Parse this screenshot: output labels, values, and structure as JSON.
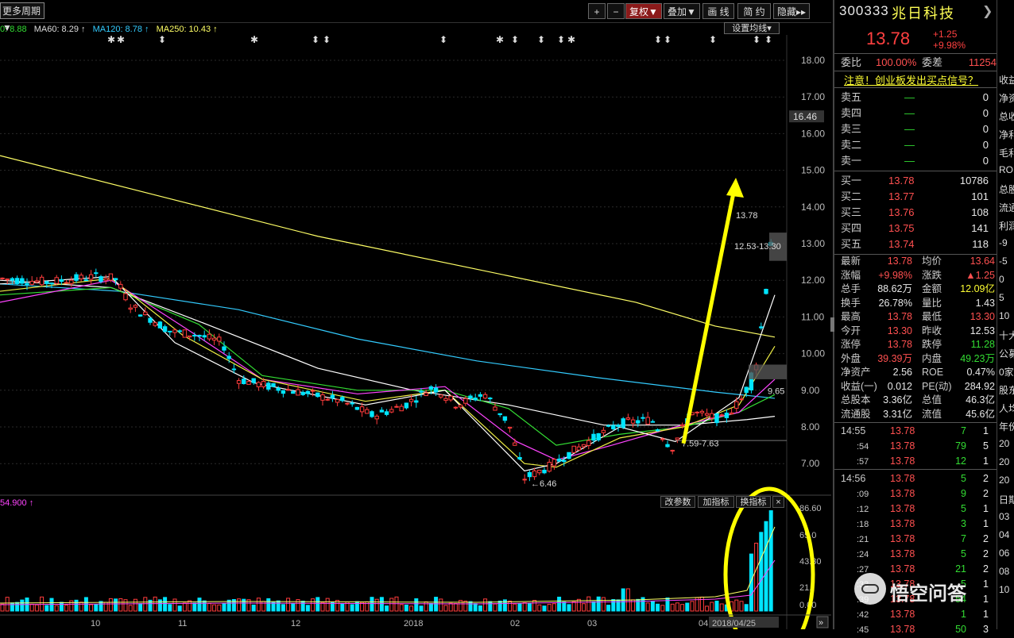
{
  "toolbar": {
    "period": "更多周期▼",
    "plus": "+",
    "minus": "−",
    "fuquan": "复权▼",
    "overlay": "叠加▼",
    "draw": "画 线",
    "simple": "简 约",
    "hide": "隐藏▸▸"
  },
  "ma_legend": {
    "ma_a": "0: 8.88",
    "ma60": "MA60: 8.29 ↑",
    "ma120": "MA120: 8.78 ↑",
    "ma250": "MA250: 10.43 ↑",
    "set_ma": "设置均线▾"
  },
  "price_axis": [
    "18.00",
    "17.00",
    "16.00",
    "15.00",
    "14.00",
    "13.00",
    "12.00",
    "11.00",
    "10.00",
    "9.00",
    "8.00",
    "7.00"
  ],
  "current_price_tag": "16.46",
  "annotations": {
    "high_label": "13.78",
    "gap_label_upper": "12.53-13.30",
    "gap_label_lower": "9.65",
    "gap_label_mid": "7.59-7.63",
    "low_label": "6.46"
  },
  "volume": {
    "legend": "54.900 ↑",
    "axis": [
      "86.60",
      "65.0",
      "43.30",
      "21.",
      "0.00"
    ],
    "buttons": {
      "params": "改参数",
      "add": "加指标",
      "switch": "换指标",
      "close": "×"
    }
  },
  "time_axis": [
    "10",
    "11",
    "12",
    "2018",
    "02",
    "03",
    "04",
    "2018/04/25"
  ],
  "chart_data": {
    "type": "candlestick",
    "title": "",
    "ylim": [
      6.2,
      18.3
    ],
    "moving_averages": {
      "MA60": 8.29,
      "MA120": 8.78,
      "MA250": 10.43
    },
    "annotated_points": {
      "high": 13.78,
      "low": 6.46
    }
  },
  "panel": {
    "code": "300333",
    "name": "兆日科技",
    "price": "13.78",
    "change": "+1.25",
    "change_pct": "+9.98%",
    "weibi_label": "委比",
    "weibi": "100.00%",
    "weicha_label": "委差",
    "weicha": "11254",
    "notice": "注意！创业板发出买点信号？",
    "asks": [
      {
        "label": "卖五",
        "price": "—",
        "vol": "0"
      },
      {
        "label": "卖四",
        "price": "—",
        "vol": "0"
      },
      {
        "label": "卖三",
        "price": "—",
        "vol": "0"
      },
      {
        "label": "卖二",
        "price": "—",
        "vol": "0"
      },
      {
        "label": "卖一",
        "price": "—",
        "vol": "0"
      }
    ],
    "bids": [
      {
        "label": "买一",
        "price": "13.78",
        "vol": "10786"
      },
      {
        "label": "买二",
        "price": "13.77",
        "vol": "101"
      },
      {
        "label": "买三",
        "price": "13.76",
        "vol": "108"
      },
      {
        "label": "买四",
        "price": "13.75",
        "vol": "141"
      },
      {
        "label": "买五",
        "price": "13.74",
        "vol": "118"
      }
    ],
    "stats": [
      {
        "l1": "最新",
        "v1": "13.78",
        "c1": "red",
        "l2": "均价",
        "v2": "13.64",
        "c2": "red"
      },
      {
        "l1": "涨幅",
        "v1": "+9.98%",
        "c1": "red",
        "l2": "涨跌",
        "v2": "▲1.25",
        "c2": "red"
      },
      {
        "l1": "总手",
        "v1": "88.62万",
        "c1": "white",
        "l2": "金额",
        "v2": "12.09亿",
        "c2": "yellow"
      },
      {
        "l1": "换手",
        "v1": "26.78%",
        "c1": "white",
        "l2": "量比",
        "v2": "1.43",
        "c2": "white"
      },
      {
        "l1": "最高",
        "v1": "13.78",
        "c1": "red",
        "l2": "最低",
        "v2": "13.30",
        "c2": "red"
      },
      {
        "l1": "今开",
        "v1": "13.30",
        "c1": "red",
        "l2": "昨收",
        "v2": "12.53",
        "c2": "white"
      },
      {
        "l1": "涨停",
        "v1": "13.78",
        "c1": "red",
        "l2": "跌停",
        "v2": "11.28",
        "c2": "green"
      },
      {
        "l1": "外盘",
        "v1": "39.39万",
        "c1": "red",
        "l2": "内盘",
        "v2": "49.23万",
        "c2": "green"
      },
      {
        "l1": "净资产",
        "v1": "2.56",
        "c1": "white",
        "l2": "ROE",
        "v2": "0.47%",
        "c2": "white"
      },
      {
        "l1": "收益(一)",
        "v1": "0.012",
        "c1": "white",
        "l2": "PE(动)",
        "v2": "284.92",
        "c2": "white"
      },
      {
        "l1": "总股本",
        "v1": "3.36亿",
        "c1": "white",
        "l2": "总值",
        "v2": "46.3亿",
        "c2": "white"
      },
      {
        "l1": "流通股",
        "v1": "3.31亿",
        "c1": "white",
        "l2": "流值",
        "v2": "45.6亿",
        "c2": "white"
      }
    ],
    "ticks": [
      {
        "t": "14:55",
        "p": "13.78",
        "v": "7",
        "n": "1"
      },
      {
        "t": ":54",
        "p": "13.78",
        "v": "79",
        "n": "5"
      },
      {
        "t": ":57",
        "p": "13.78",
        "v": "12",
        "n": "1"
      },
      {
        "t": "14:56",
        "p": "13.78",
        "v": "5",
        "n": "2"
      },
      {
        "t": ":09",
        "p": "13.78",
        "v": "9",
        "n": "2"
      },
      {
        "t": ":12",
        "p": "13.78",
        "v": "5",
        "n": "1"
      },
      {
        "t": ":18",
        "p": "13.78",
        "v": "3",
        "n": "1"
      },
      {
        "t": ":21",
        "p": "13.78",
        "v": "7",
        "n": "2"
      },
      {
        "t": ":24",
        "p": "13.78",
        "v": "5",
        "n": "2"
      },
      {
        "t": ":27",
        "p": "13.78",
        "v": "21",
        "n": "2"
      },
      {
        "t": ":33",
        "p": "13.78",
        "v": "5",
        "n": "1"
      },
      {
        "t": ":39",
        "p": "13.78",
        "v": "54",
        "n": "1"
      },
      {
        "t": ":42",
        "p": "13.78",
        "v": "1",
        "n": "1"
      },
      {
        "t": ":45",
        "p": "13.78",
        "v": "50",
        "n": "3"
      }
    ]
  },
  "side_labels": [
    "收益",
    "净资",
    "总收",
    "净利",
    "毛利",
    "ROE",
    "总股",
    "流通",
    "利润",
    "-9",
    "-5",
    "0",
    "5",
    "10",
    "十大",
    "公募",
    "0家",
    "股东",
    "人均",
    "年份",
    "20",
    "20",
    "20",
    "日期",
    "03",
    "04",
    "06",
    "08",
    "10"
  ],
  "watermark": "悟空问答"
}
